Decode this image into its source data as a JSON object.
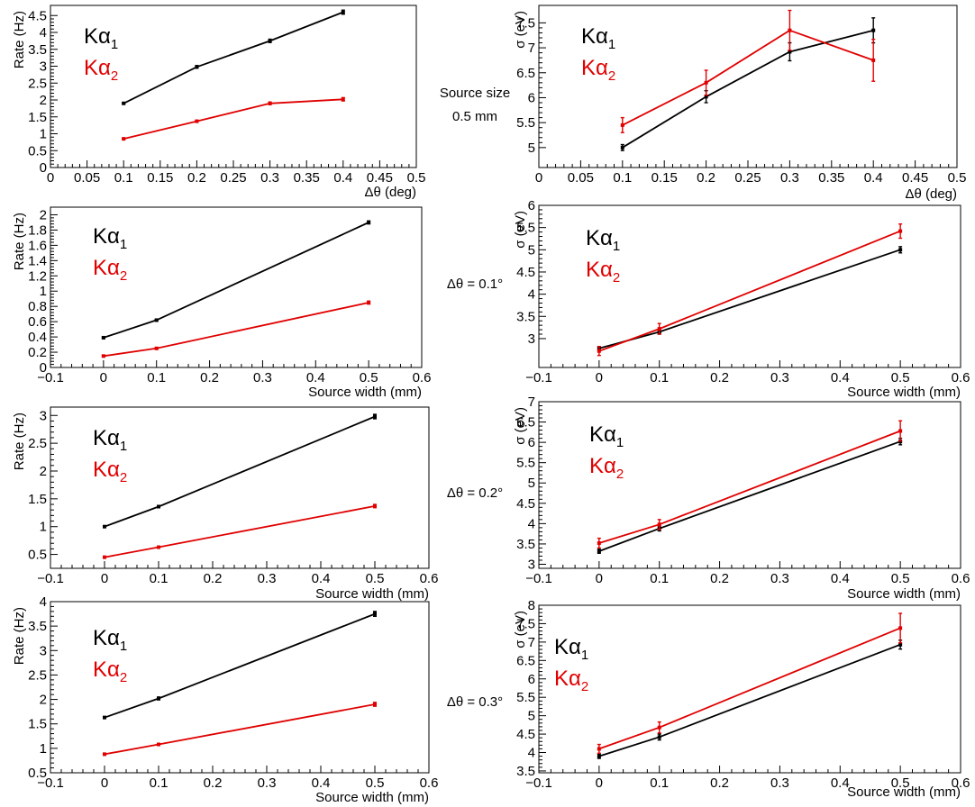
{
  "colors": {
    "k_alpha1": "#000000",
    "k_alpha2": "#e00000"
  },
  "legend": {
    "series1": "Kα1",
    "series2": "Kα2"
  },
  "row_notes": [
    {
      "lines": [
        "Source size",
        "0.5 mm"
      ]
    },
    {
      "lines": [
        "Δθ = 0.1°"
      ]
    },
    {
      "lines": [
        "Δθ = 0.2°"
      ]
    },
    {
      "lines": [
        "Δθ = 0.3°"
      ]
    }
  ],
  "chart_data": [
    {
      "type": "line",
      "panel": "row1-left",
      "xlabel": "Δθ (deg)",
      "ylabel": "Rate (Hz)",
      "xlim": [
        0,
        0.5
      ],
      "ylim": [
        0,
        4.8
      ],
      "xticks": [
        0,
        0.05,
        0.1,
        0.15,
        0.2,
        0.25,
        0.3,
        0.35,
        0.4,
        0.45,
        0.5
      ],
      "xticklabels": [
        "0",
        "0.05",
        "0.1",
        "0.15",
        "0.2",
        "0.25",
        "0.3",
        "0.35",
        "0.4",
        "0.45",
        "0.5"
      ],
      "yticks": [
        0,
        0.5,
        1,
        1.5,
        2,
        2.5,
        3,
        3.5,
        4,
        4.5
      ],
      "yticklabels": [
        "0",
        "0.5",
        "1",
        "1.5",
        "2",
        "2.5",
        "3",
        "3.5",
        "4",
        "4.5"
      ],
      "x": [
        0.1,
        0.2,
        0.3,
        0.4
      ],
      "series": [
        {
          "name": "Kα1",
          "values": [
            1.9,
            2.98,
            3.75,
            4.6
          ],
          "errors": [
            0.02,
            0.04,
            0.05,
            0.06
          ]
        },
        {
          "name": "Kα2",
          "values": [
            0.85,
            1.37,
            1.9,
            2.02
          ],
          "errors": [
            0.02,
            0.03,
            0.04,
            0.05
          ]
        }
      ]
    },
    {
      "type": "line",
      "panel": "row1-right",
      "xlabel": "Δθ (deg)",
      "ylabel": "σ (eV)",
      "xlim": [
        0,
        0.5
      ],
      "ylim": [
        4.6,
        7.85
      ],
      "xticks": [
        0,
        0.05,
        0.1,
        0.15,
        0.2,
        0.25,
        0.3,
        0.35,
        0.4,
        0.45,
        0.5
      ],
      "xticklabels": [
        "0",
        "0.05",
        "0.1",
        "0.15",
        "0.2",
        "0.25",
        "0.3",
        "0.35",
        "0.4",
        "0.45",
        "0.5"
      ],
      "yticks": [
        5,
        5.5,
        6,
        6.5,
        7,
        7.5
      ],
      "yticklabels": [
        "5",
        "5.5",
        "6",
        "6.5",
        "7",
        "7.5"
      ],
      "x": [
        0.1,
        0.2,
        0.3,
        0.4
      ],
      "series": [
        {
          "name": "Kα1",
          "values": [
            5.0,
            6.02,
            6.92,
            7.35
          ],
          "errors": [
            0.06,
            0.12,
            0.18,
            0.25
          ]
        },
        {
          "name": "Kα2",
          "values": [
            5.45,
            6.3,
            7.35,
            6.75
          ],
          "errors": [
            0.15,
            0.25,
            0.4,
            0.42
          ]
        }
      ]
    },
    {
      "type": "line",
      "panel": "row2-left",
      "xlabel": "Source width (mm)",
      "ylabel": "Rate (Hz)",
      "xlim": [
        -0.1,
        0.6
      ],
      "ylim": [
        0,
        2.1
      ],
      "xticks": [
        -0.1,
        0,
        0.1,
        0.2,
        0.3,
        0.4,
        0.5,
        0.6
      ],
      "xticklabels": [
        "−0.1",
        "0",
        "0.1",
        "0.2",
        "0.3",
        "0.4",
        "0.5",
        "0.6"
      ],
      "yticks": [
        0,
        0.2,
        0.4,
        0.6,
        0.8,
        1,
        1.2,
        1.4,
        1.6,
        1.8,
        2
      ],
      "yticklabels": [
        "0",
        "0.2",
        "0.4",
        "0.6",
        "0.8",
        "1",
        "1.2",
        "1.4",
        "1.6",
        "1.8",
        "2"
      ],
      "x": [
        0,
        0.1,
        0.5
      ],
      "series": [
        {
          "name": "Kα1",
          "values": [
            0.39,
            0.62,
            1.9
          ],
          "errors": [
            0.01,
            0.01,
            0.02
          ]
        },
        {
          "name": "Kα2",
          "values": [
            0.15,
            0.25,
            0.85
          ],
          "errors": [
            0.01,
            0.01,
            0.02
          ]
        }
      ]
    },
    {
      "type": "line",
      "panel": "row2-right",
      "xlabel": "Source width (mm)",
      "ylabel": "σ (eV)",
      "xlim": [
        -0.1,
        0.6
      ],
      "ylim": [
        2.35,
        6.0
      ],
      "xticks": [
        -0.1,
        0,
        0.1,
        0.2,
        0.3,
        0.4,
        0.5,
        0.6
      ],
      "xticklabels": [
        "−0.1",
        "0",
        "0.1",
        "0.2",
        "0.3",
        "0.4",
        "0.5",
        "0.6"
      ],
      "yticks": [
        3,
        3.5,
        4,
        4.5,
        5,
        5.5,
        6
      ],
      "yticklabels": [
        "3",
        "3.5",
        "4",
        "4.5",
        "5",
        "5.5",
        "6"
      ],
      "x": [
        0,
        0.1,
        0.5
      ],
      "series": [
        {
          "name": "Kα1",
          "values": [
            2.78,
            3.15,
            5.0
          ],
          "errors": [
            0.04,
            0.05,
            0.07
          ]
        },
        {
          "name": "Kα2",
          "values": [
            2.72,
            3.22,
            5.42
          ],
          "errors": [
            0.1,
            0.12,
            0.16
          ]
        }
      ]
    },
    {
      "type": "line",
      "panel": "row3-left",
      "xlabel": "Source width (mm)",
      "ylabel": "Rate (Hz)",
      "xlim": [
        -0.1,
        0.6
      ],
      "ylim": [
        0.25,
        3.15
      ],
      "xticks": [
        -0.1,
        0,
        0.1,
        0.2,
        0.3,
        0.4,
        0.5,
        0.6
      ],
      "xticklabels": [
        "−0.1",
        "0",
        "0.1",
        "0.2",
        "0.3",
        "0.4",
        "0.5",
        "0.6"
      ],
      "yticks": [
        0.5,
        1,
        1.5,
        2,
        2.5,
        3
      ],
      "yticklabels": [
        "0.5",
        "1",
        "1.5",
        "2",
        "2.5",
        "3"
      ],
      "x": [
        0,
        0.1,
        0.5
      ],
      "series": [
        {
          "name": "Kα1",
          "values": [
            1.0,
            1.36,
            2.98
          ],
          "errors": [
            0.01,
            0.02,
            0.04
          ]
        },
        {
          "name": "Kα2",
          "values": [
            0.45,
            0.63,
            1.37
          ],
          "errors": [
            0.01,
            0.01,
            0.03
          ]
        }
      ]
    },
    {
      "type": "line",
      "panel": "row3-right",
      "xlabel": "Source width (mm)",
      "ylabel": "σ (eV)",
      "xlim": [
        -0.1,
        0.6
      ],
      "ylim": [
        2.9,
        7.0
      ],
      "xticks": [
        -0.1,
        0,
        0.1,
        0.2,
        0.3,
        0.4,
        0.5,
        0.6
      ],
      "xticklabels": [
        "−0.1",
        "0",
        "0.1",
        "0.2",
        "0.3",
        "0.4",
        "0.5",
        "0.6"
      ],
      "yticks": [
        3,
        3.5,
        4,
        4.5,
        5,
        5.5,
        6,
        6.5,
        7
      ],
      "yticklabels": [
        "3",
        "3.5",
        "4",
        "4.5",
        "5",
        "5.5",
        "6",
        "6.5",
        "7"
      ],
      "x": [
        0,
        0.1,
        0.5
      ],
      "series": [
        {
          "name": "Kα1",
          "values": [
            3.32,
            3.88,
            6.02
          ],
          "errors": [
            0.05,
            0.06,
            0.08
          ]
        },
        {
          "name": "Kα2",
          "values": [
            3.52,
            3.98,
            6.28
          ],
          "errors": [
            0.12,
            0.12,
            0.25
          ]
        }
      ]
    },
    {
      "type": "line",
      "panel": "row4-left",
      "xlabel": "Source width (mm)",
      "ylabel": "Rate (Hz)",
      "xlim": [
        -0.1,
        0.6
      ],
      "ylim": [
        0.5,
        4.0
      ],
      "xticks": [
        -0.1,
        0,
        0.1,
        0.2,
        0.3,
        0.4,
        0.5,
        0.6
      ],
      "xticklabels": [
        "−0.1",
        "0",
        "0.1",
        "0.2",
        "0.3",
        "0.4",
        "0.5",
        "0.6"
      ],
      "yticks": [
        0.5,
        1,
        1.5,
        2,
        2.5,
        3,
        3.5,
        4
      ],
      "yticklabels": [
        "0.5",
        "1",
        "1.5",
        "2",
        "2.5",
        "3",
        "3.5",
        "4"
      ],
      "x": [
        0,
        0.1,
        0.5
      ],
      "series": [
        {
          "name": "Kα1",
          "values": [
            1.63,
            2.02,
            3.75
          ],
          "errors": [
            0.02,
            0.03,
            0.05
          ]
        },
        {
          "name": "Kα2",
          "values": [
            0.88,
            1.08,
            1.9
          ],
          "errors": [
            0.02,
            0.02,
            0.04
          ]
        }
      ]
    },
    {
      "type": "line",
      "panel": "row4-right",
      "xlabel": "Source width (mm)",
      "ylabel": "σ (eV)",
      "xlim": [
        -0.1,
        0.6
      ],
      "ylim": [
        3.45,
        8.0
      ],
      "xticks": [
        -0.1,
        0,
        0.1,
        0.2,
        0.3,
        0.4,
        0.5,
        0.6
      ],
      "xticklabels": [
        "−0.1",
        "0",
        "0.1",
        "0.2",
        "0.3",
        "0.4",
        "0.5",
        "0.6"
      ],
      "yticks": [
        3.5,
        4,
        4.5,
        5,
        5.5,
        6,
        6.5,
        7,
        7.5,
        8
      ],
      "yticklabels": [
        "3.5",
        "4",
        "4.5",
        "5",
        "5.5",
        "6",
        "6.5",
        "7",
        "7.5",
        "8"
      ],
      "x": [
        0,
        0.1,
        0.5
      ],
      "series": [
        {
          "name": "Kα1",
          "values": [
            3.9,
            4.42,
            6.93
          ],
          "errors": [
            0.06,
            0.08,
            0.12
          ]
        },
        {
          "name": "Kα2",
          "values": [
            4.1,
            4.68,
            7.38
          ],
          "errors": [
            0.12,
            0.15,
            0.4
          ]
        }
      ]
    }
  ]
}
